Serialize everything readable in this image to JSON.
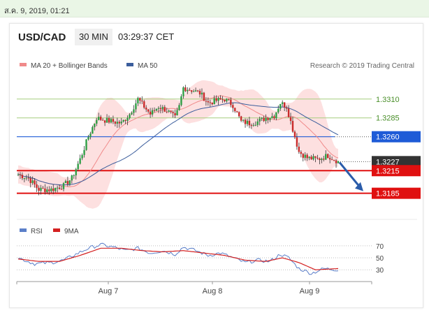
{
  "timestamp": "ส.ค. 9, 2019, 01:21",
  "header": {
    "pair": "USD/CAD",
    "timeframe": "30 MIN",
    "time": "03:29:37 CET"
  },
  "legend": {
    "ma20_label": "MA 20 + Bollinger Bands",
    "ma50_label": "MA 50",
    "credit": "Research © 2019 Trading Central",
    "ma20_color": "#f08a8a",
    "ma50_color": "#3b5d9c"
  },
  "rsi_legend": {
    "rsi_label": "RSI",
    "ma_label": "9MA",
    "rsi_color": "#5b7fc9",
    "ma_color": "#d42020"
  },
  "chart_data": [
    {
      "type": "line",
      "title": "",
      "x_ticks": [
        "Aug 7",
        "Aug 8",
        "Aug 9"
      ],
      "ylim": [
        1.3155,
        1.3345
      ],
      "levels": [
        {
          "label": "1.3310",
          "value": 1.331,
          "kind": "target",
          "color": "#a6ce7e",
          "label_color": "#4a8f2a"
        },
        {
          "label": "1.3285",
          "value": 1.3285,
          "kind": "target",
          "color": "#a6ce7e",
          "label_color": "#4a8f2a"
        },
        {
          "label": "1.3260",
          "value": 1.326,
          "kind": "pivot",
          "color": "#1e5bd7",
          "label_color": "#ffffff"
        },
        {
          "label": "1.3227",
          "value": 1.3227,
          "kind": "last",
          "color": "#333333",
          "label_color": "#ffffff"
        },
        {
          "label": "1.3215",
          "value": 1.3215,
          "kind": "support",
          "color": "#e01010",
          "label_color": "#ffffff"
        },
        {
          "label": "1.3185",
          "value": 1.3185,
          "kind": "support",
          "color": "#e01010",
          "label_color": "#ffffff"
        }
      ],
      "price_keyframes": [
        [
          0,
          1.321
        ],
        [
          5,
          1.3205
        ],
        [
          10,
          1.319
        ],
        [
          16,
          1.319
        ],
        [
          22,
          1.3195
        ],
        [
          26,
          1.3205
        ],
        [
          30,
          1.323
        ],
        [
          34,
          1.326
        ],
        [
          38,
          1.3285
        ],
        [
          42,
          1.3282
        ],
        [
          46,
          1.328
        ],
        [
          50,
          1.3278
        ],
        [
          54,
          1.329
        ],
        [
          58,
          1.331
        ],
        [
          64,
          1.329
        ],
        [
          68,
          1.33
        ],
        [
          72,
          1.3295
        ],
        [
          76,
          1.3285
        ],
        [
          78,
          1.33
        ],
        [
          80,
          1.3325
        ],
        [
          84,
          1.3322
        ],
        [
          88,
          1.3318
        ],
        [
          92,
          1.3305
        ],
        [
          96,
          1.3308
        ],
        [
          100,
          1.331
        ],
        [
          104,
          1.3302
        ],
        [
          108,
          1.328
        ],
        [
          112,
          1.3278
        ],
        [
          116,
          1.328
        ],
        [
          120,
          1.3285
        ],
        [
          124,
          1.3288
        ],
        [
          127,
          1.3305
        ],
        [
          130,
          1.33
        ],
        [
          133,
          1.327
        ],
        [
          136,
          1.324
        ],
        [
          140,
          1.3232
        ],
        [
          145,
          1.323
        ],
        [
          150,
          1.3235
        ],
        [
          155,
          1.3227
        ]
      ],
      "rsi": {
        "levels": [
          70,
          50,
          30
        ],
        "ylim": [
          15,
          85
        ],
        "rsi_keyframes": [
          [
            0,
            50
          ],
          [
            8,
            40
          ],
          [
            16,
            42
          ],
          [
            22,
            46
          ],
          [
            28,
            56
          ],
          [
            34,
            66
          ],
          [
            40,
            72
          ],
          [
            46,
            68
          ],
          [
            52,
            62
          ],
          [
            58,
            66
          ],
          [
            64,
            58
          ],
          [
            70,
            62
          ],
          [
            76,
            56
          ],
          [
            80,
            68
          ],
          [
            86,
            62
          ],
          [
            92,
            54
          ],
          [
            98,
            58
          ],
          [
            104,
            50
          ],
          [
            110,
            42
          ],
          [
            116,
            46
          ],
          [
            122,
            44
          ],
          [
            127,
            56
          ],
          [
            131,
            50
          ],
          [
            136,
            32
          ],
          [
            142,
            24
          ],
          [
            148,
            32
          ],
          [
            155,
            30
          ]
        ],
        "ma_keyframes": [
          [
            0,
            48
          ],
          [
            10,
            44
          ],
          [
            20,
            44
          ],
          [
            30,
            54
          ],
          [
            40,
            66
          ],
          [
            50,
            66
          ],
          [
            60,
            62
          ],
          [
            70,
            60
          ],
          [
            80,
            62
          ],
          [
            90,
            58
          ],
          [
            100,
            54
          ],
          [
            110,
            46
          ],
          [
            120,
            44
          ],
          [
            128,
            50
          ],
          [
            136,
            42
          ],
          [
            144,
            30
          ],
          [
            155,
            32
          ]
        ]
      }
    }
  ]
}
